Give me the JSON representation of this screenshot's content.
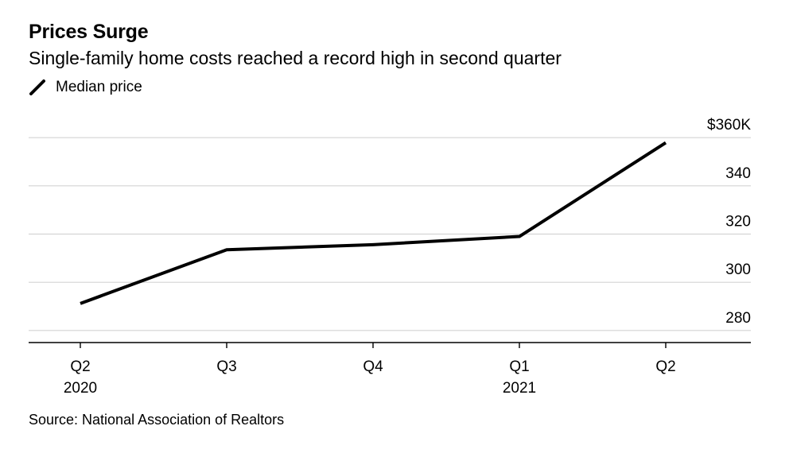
{
  "header": {
    "title": "Prices Surge",
    "subtitle": "Single-family home costs reached a record high in second quarter"
  },
  "legend": {
    "label": "Median price",
    "color": "#000000"
  },
  "source": "Source: National Association of Realtors",
  "chart_data": {
    "type": "line",
    "title": "Prices Surge",
    "subtitle": "Single-family home costs reached a record high in second quarter",
    "xlabel": "",
    "ylabel": "",
    "categories": [
      "Q2",
      "Q3",
      "Q4",
      "Q1",
      "Q2"
    ],
    "category_years": [
      "2020",
      "",
      "",
      "2021",
      ""
    ],
    "series": [
      {
        "name": "Median price",
        "color": "#000000",
        "values": [
          291.2,
          313.5,
          315.6,
          319.0,
          357.9
        ]
      }
    ],
    "ylim": [
      275,
      365
    ],
    "yticks": [
      280,
      300,
      320,
      340,
      360
    ],
    "ytick_labels": [
      "280",
      "300",
      "320",
      "340",
      "$360K"
    ],
    "grid": true,
    "y_axis_side": "right",
    "legend_position": "top-left"
  }
}
